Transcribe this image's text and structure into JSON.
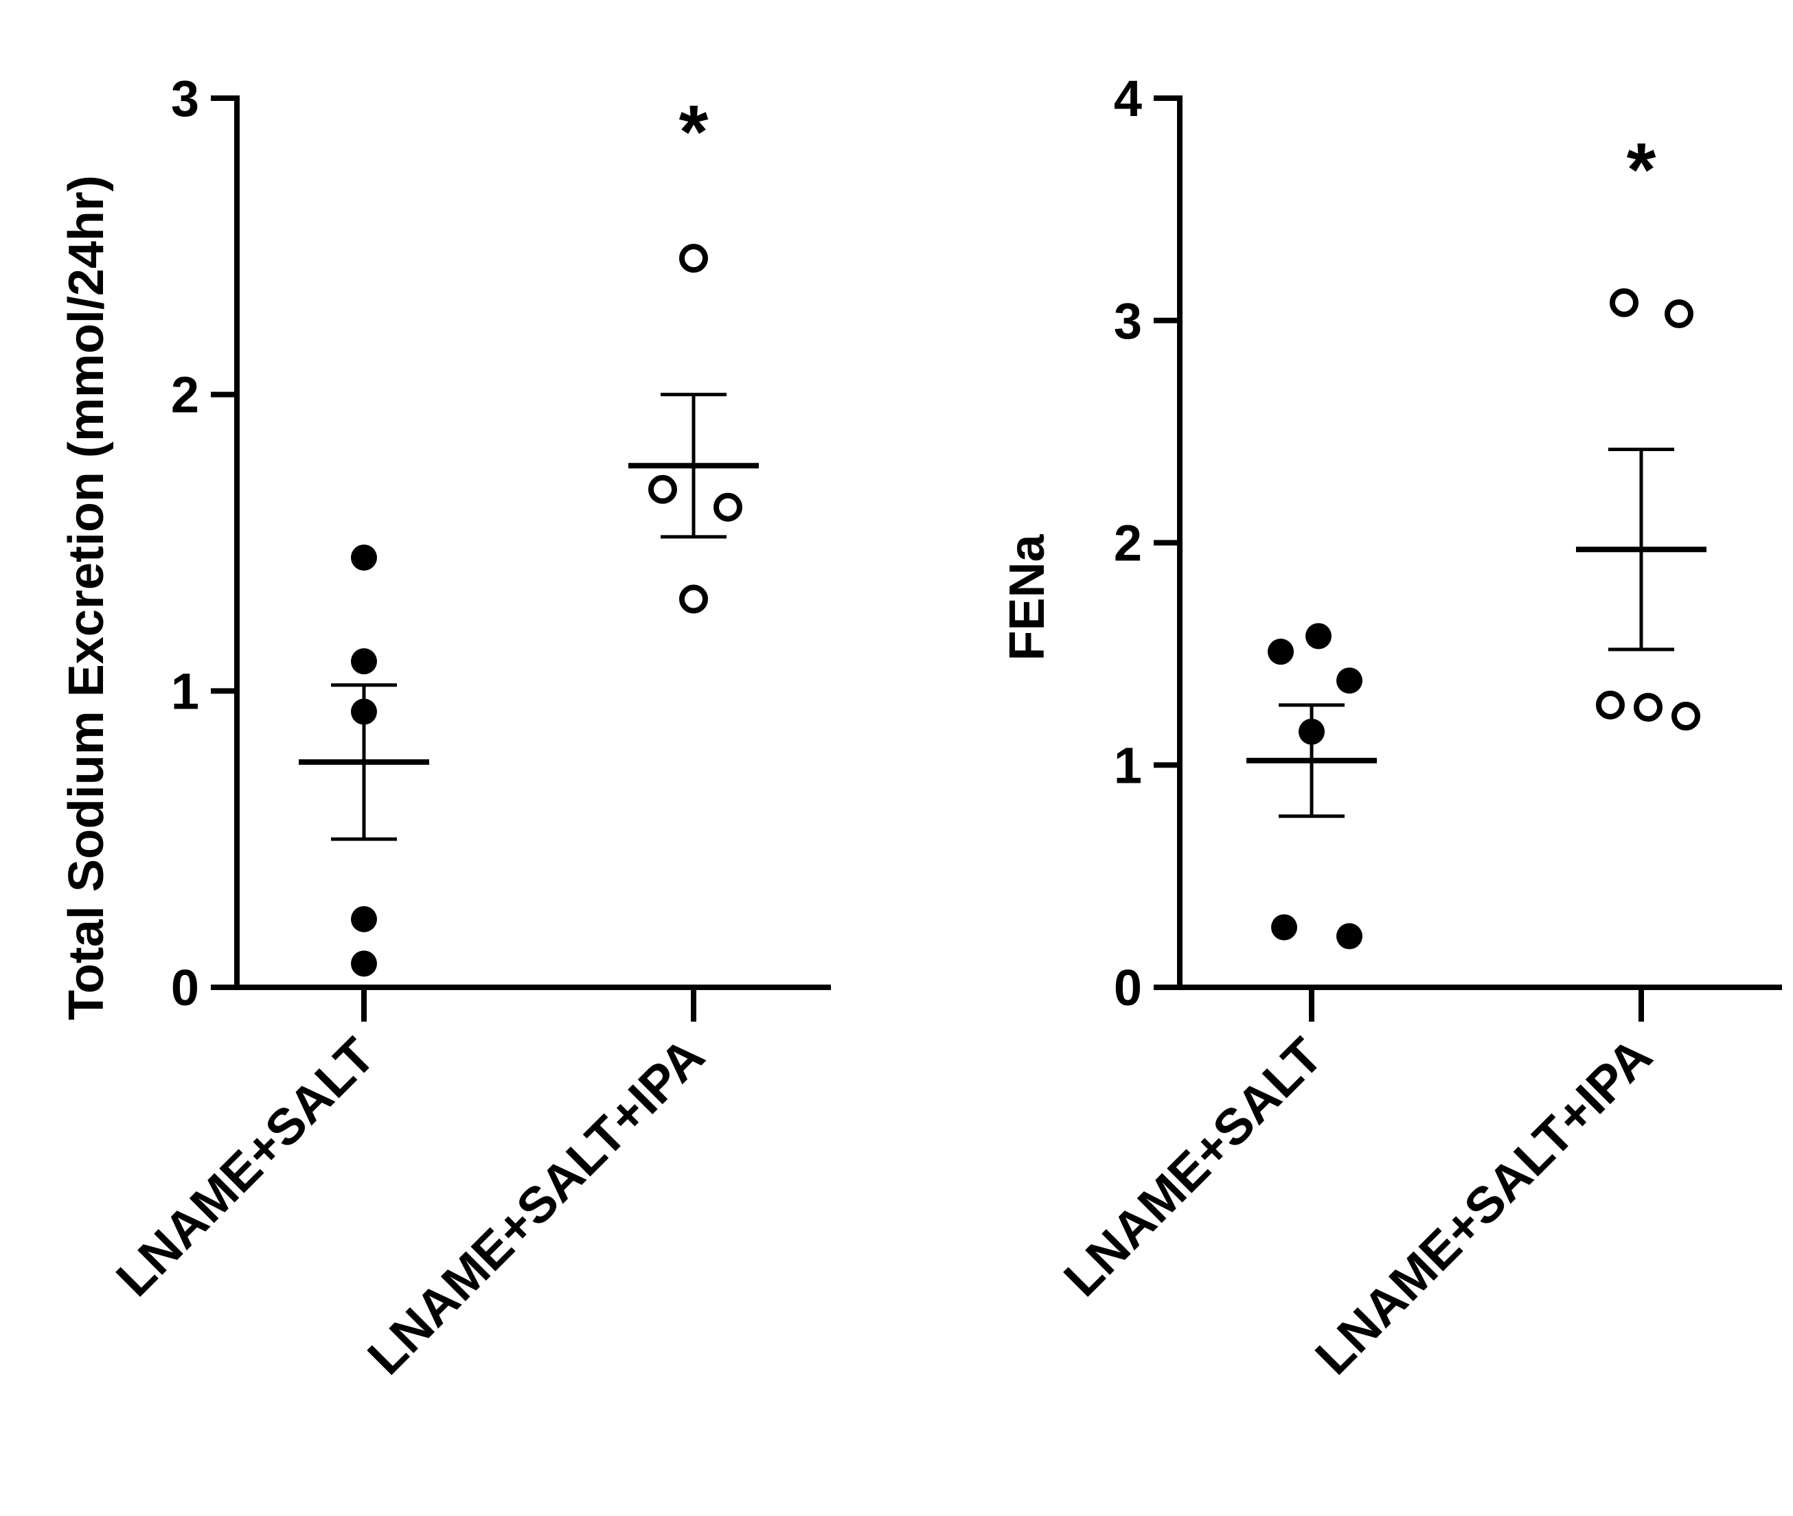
{
  "chart_data": [
    {
      "type": "scatter",
      "ylabel": "Total Sodium Excretion (mmol/24hr)",
      "ylim": [
        0,
        3
      ],
      "yticks": [
        "0",
        "1",
        "2",
        "3"
      ],
      "categories": [
        "LNAME+SALT",
        "LNAME+SALT+IPA"
      ],
      "significance_marker": "*",
      "series": [
        {
          "category": "LNAME+SALT",
          "marker": "filled-circle",
          "points": [
            1.45,
            1.1,
            0.93,
            0.23,
            0.08
          ],
          "mean": 0.76,
          "sem_upper": 1.02,
          "sem_lower": 0.5
        },
        {
          "category": "LNAME+SALT+IPA",
          "marker": "open-circle",
          "points": [
            2.46,
            1.68,
            1.62,
            1.31
          ],
          "mean": 1.76,
          "sem_upper": 2.0,
          "sem_lower": 1.52
        }
      ]
    },
    {
      "type": "scatter",
      "ylabel": "FENa",
      "ylim": [
        0,
        4
      ],
      "yticks": [
        "0",
        "1",
        "2",
        "3",
        "4"
      ],
      "categories": [
        "LNAME+SALT",
        "LNAME+SALT+IPA"
      ],
      "significance_marker": "*",
      "series": [
        {
          "category": "LNAME+SALT",
          "marker": "filled-circle",
          "points": [
            1.51,
            1.58,
            1.38,
            1.15,
            0.27,
            0.23
          ],
          "mean": 1.02,
          "sem_upper": 1.27,
          "sem_lower": 0.77
        },
        {
          "category": "LNAME+SALT+IPA",
          "marker": "open-circle",
          "points": [
            3.08,
            3.03,
            1.27,
            1.26,
            1.22
          ],
          "mean": 1.97,
          "sem_upper": 2.42,
          "sem_lower": 1.52
        }
      ]
    }
  ]
}
